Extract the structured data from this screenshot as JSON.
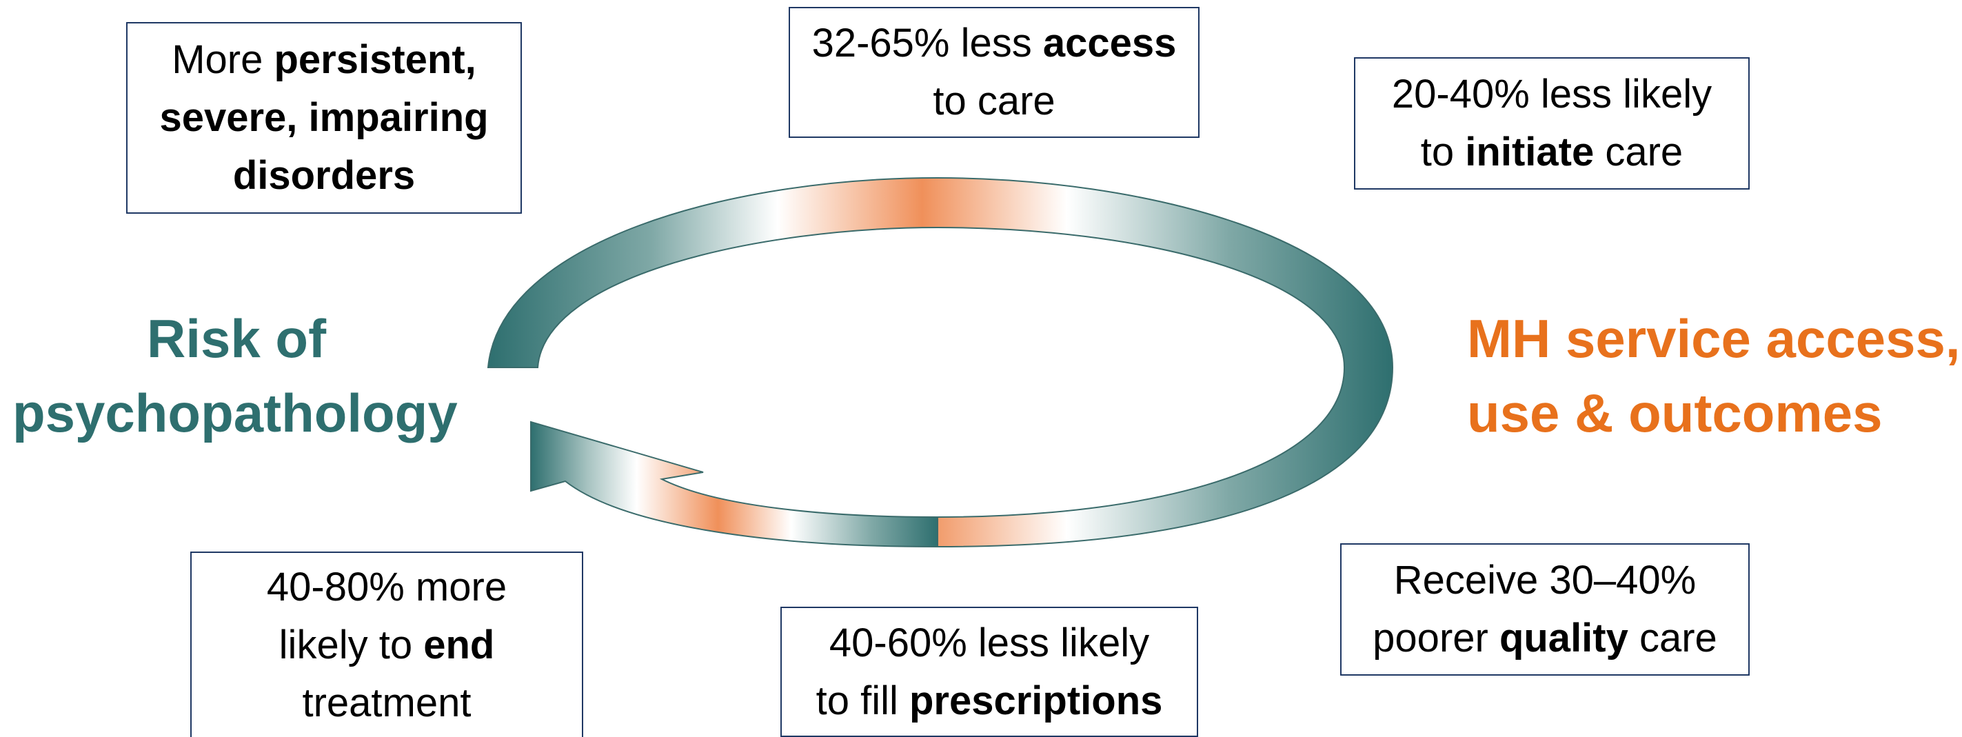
{
  "colors": {
    "teal": "#2e6f6f",
    "orange": "#e8711c",
    "box_border": "#1f3864"
  },
  "left_label": [
    "Risk of",
    "psychopathology"
  ],
  "right_label": [
    "MH service access,",
    "use & outcomes"
  ],
  "boxes": {
    "top_left": [
      [
        {
          "t": "More "
        },
        {
          "t": "persistent,",
          "b": true
        }
      ],
      [
        {
          "t": "severe, impairing",
          "b": true
        }
      ],
      [
        {
          "t": "disorders",
          "b": true
        }
      ]
    ],
    "top_center": [
      [
        {
          "t": "32-65% less "
        },
        {
          "t": "access",
          "b": true
        }
      ],
      [
        {
          "t": "to care"
        }
      ]
    ],
    "top_right": [
      [
        {
          "t": "20-40% less likely"
        }
      ],
      [
        {
          "t": "to "
        },
        {
          "t": "initiate",
          "b": true
        },
        {
          "t": " care"
        }
      ]
    ],
    "bottom_right": [
      [
        {
          "t": "Receive 30–40%"
        }
      ],
      [
        {
          "t": "poorer "
        },
        {
          "t": "quality",
          "b": true
        },
        {
          "t": " care"
        }
      ]
    ],
    "bottom_center": [
      [
        {
          "t": "40-60% less likely"
        }
      ],
      [
        {
          "t": "to fill "
        },
        {
          "t": "prescriptions",
          "b": true
        }
      ]
    ],
    "bottom_left": [
      [
        {
          "t": "40-80% more"
        }
      ],
      [
        {
          "t": "likely to "
        },
        {
          "t": "end",
          "b": true
        }
      ],
      [
        {
          "t": "treatment"
        }
      ]
    ]
  }
}
